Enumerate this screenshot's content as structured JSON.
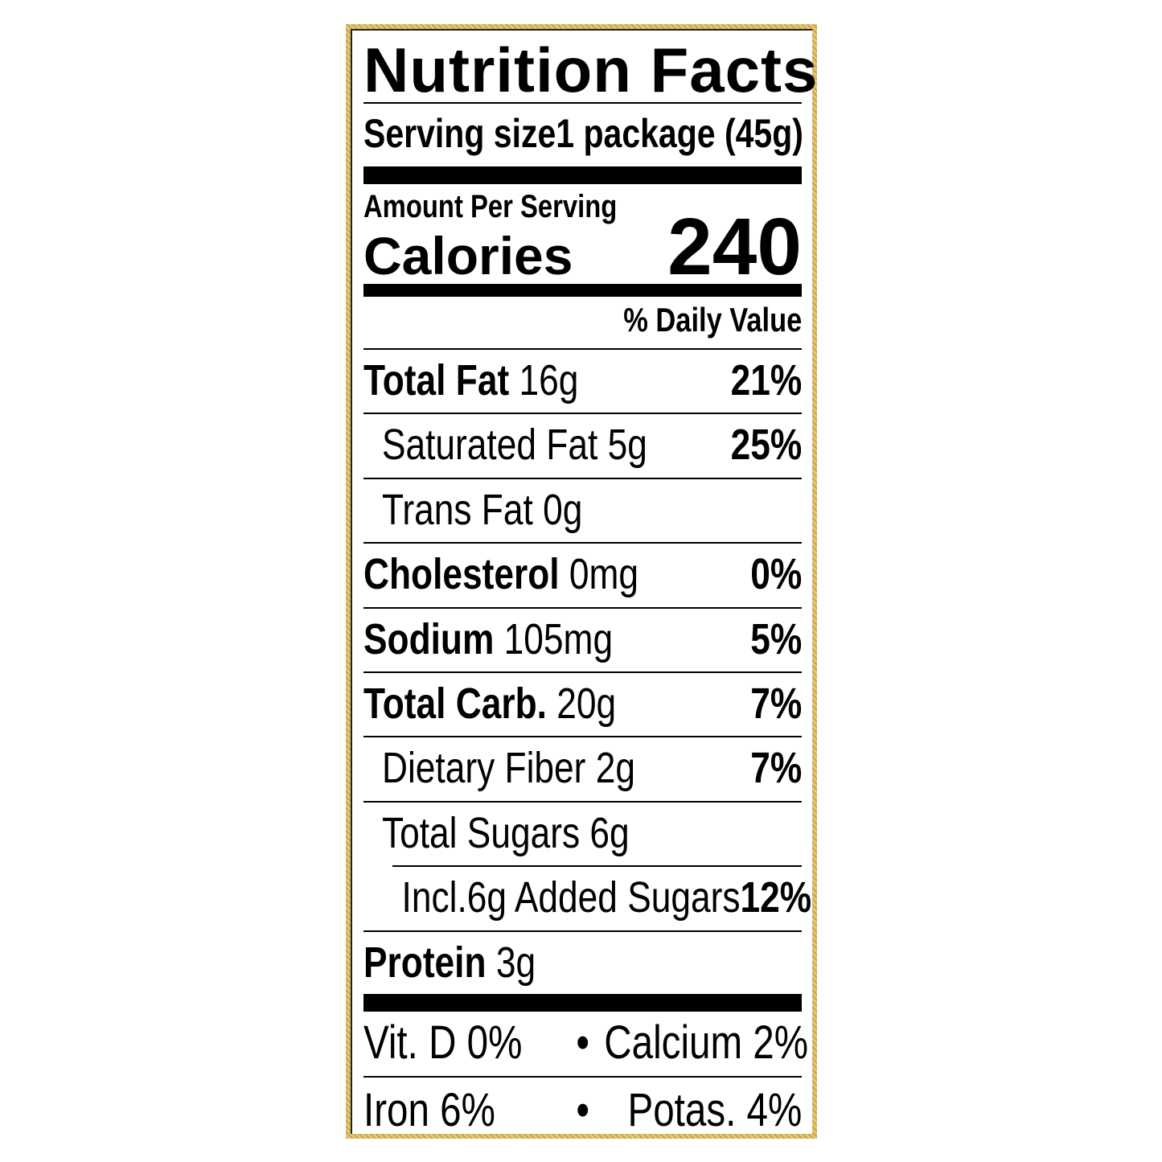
{
  "title": "Nutrition Facts",
  "serving": {
    "label": "Serving size",
    "value": "1 package (45g)"
  },
  "amount_per_serving": "Amount Per Serving",
  "calories": {
    "label": "Calories",
    "value": "240"
  },
  "daily_value_header": "% Daily Value",
  "nutrients": [
    {
      "name": "Total Fat",
      "amount": "16g",
      "dv": "21%"
    },
    {
      "name": "Saturated Fat",
      "amount": "5g",
      "dv": "25%"
    },
    {
      "name": "Trans Fat",
      "amount": "0g",
      "dv": ""
    },
    {
      "name": "Cholesterol",
      "amount": "0mg",
      "dv": "0%"
    },
    {
      "name": "Sodium",
      "amount": "105mg",
      "dv": "5%"
    },
    {
      "name": "Total Carb.",
      "amount": "20g",
      "dv": "7%"
    },
    {
      "name": "Dietary Fiber",
      "amount": "2g",
      "dv": "7%"
    },
    {
      "name": "Total Sugars",
      "amount": "6g",
      "dv": ""
    },
    {
      "name": "Incl.",
      "amount": "6g Added Sugars",
      "dv": "12%"
    },
    {
      "name": "Protein",
      "amount": "3g",
      "dv": ""
    }
  ],
  "vitamins": [
    {
      "left": "Vit. D  0%",
      "bullet": "•",
      "right": "Calcium  2%"
    },
    {
      "left": "Iron 6%",
      "bullet": "•",
      "right": "Potas.  4%"
    }
  ],
  "colors": {
    "border": "#d9b960",
    "ink": "#000000"
  }
}
